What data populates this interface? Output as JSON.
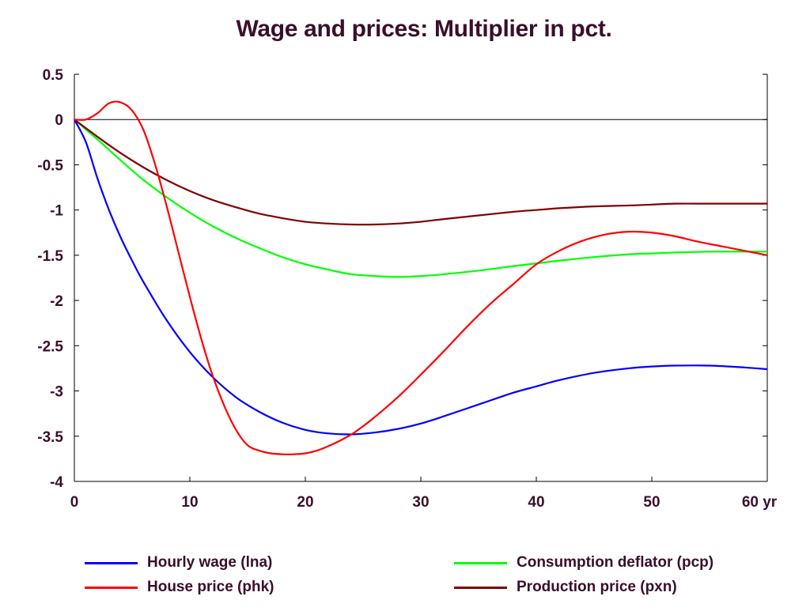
{
  "chart_data": {
    "type": "line",
    "title": "Wage and prices: Multiplier in pct.",
    "xlim": [
      0,
      60
    ],
    "ylim": [
      -4,
      0.5
    ],
    "x_ticks": [
      0,
      10,
      20,
      30,
      40,
      50,
      60
    ],
    "x_tick_labels": [
      "0",
      "10",
      "20",
      "30",
      "40",
      "50",
      "60 yr"
    ],
    "y_ticks": [
      0.5,
      0,
      -0.5,
      -1,
      -1.5,
      -2,
      -2.5,
      -3,
      -3.5,
      -4
    ],
    "y_tick_labels": [
      "0.5",
      "0",
      "-0.5",
      "-1",
      "-1.5",
      "-2",
      "-2.5",
      "-3",
      "-3.5",
      "-4"
    ],
    "zero_line": true,
    "grid": false,
    "legend_position": "bottom",
    "series": [
      {
        "name": "Hourly wage (lna)",
        "color": "#0000ff",
        "x": [
          0,
          1,
          2,
          3,
          4,
          5,
          6,
          8,
          10,
          12,
          14,
          16,
          18,
          20,
          22,
          24,
          26,
          28,
          30,
          32,
          35,
          38,
          40,
          42,
          45,
          48,
          50,
          52,
          55,
          58,
          60
        ],
        "y": [
          0,
          -0.25,
          -0.65,
          -1.0,
          -1.3,
          -1.56,
          -1.8,
          -2.22,
          -2.57,
          -2.85,
          -3.07,
          -3.23,
          -3.35,
          -3.43,
          -3.47,
          -3.48,
          -3.46,
          -3.42,
          -3.36,
          -3.28,
          -3.15,
          -3.02,
          -2.95,
          -2.88,
          -2.8,
          -2.75,
          -2.73,
          -2.72,
          -2.72,
          -2.74,
          -2.76
        ]
      },
      {
        "name": "Consumption deflator (pcp)",
        "color": "#00ff00",
        "x": [
          0,
          2,
          4,
          6,
          8,
          10,
          12,
          14,
          16,
          18,
          20,
          22,
          24,
          26,
          28,
          30,
          32,
          35,
          38,
          40,
          42,
          45,
          48,
          50,
          52,
          55,
          58,
          60
        ],
        "y": [
          0,
          -0.22,
          -0.45,
          -0.67,
          -0.86,
          -1.03,
          -1.18,
          -1.31,
          -1.42,
          -1.52,
          -1.6,
          -1.66,
          -1.71,
          -1.73,
          -1.74,
          -1.73,
          -1.71,
          -1.67,
          -1.62,
          -1.59,
          -1.56,
          -1.52,
          -1.49,
          -1.48,
          -1.47,
          -1.46,
          -1.46,
          -1.46
        ]
      },
      {
        "name": "House price (phk)",
        "color": "#ff0000",
        "x": [
          0,
          1,
          2,
          3,
          4,
          5,
          6,
          7,
          8,
          9,
          10,
          11,
          12,
          13,
          14,
          15,
          16,
          17,
          18,
          19,
          20,
          21,
          22,
          23,
          24,
          25,
          26,
          28,
          30,
          32,
          34,
          36,
          38,
          40,
          42,
          44,
          46,
          48,
          50,
          52,
          54,
          56,
          58,
          60
        ],
        "y": [
          0,
          0,
          0.07,
          0.18,
          0.19,
          0.1,
          -0.12,
          -0.5,
          -0.96,
          -1.46,
          -1.96,
          -2.43,
          -2.84,
          -3.17,
          -3.43,
          -3.6,
          -3.66,
          -3.69,
          -3.7,
          -3.7,
          -3.69,
          -3.66,
          -3.61,
          -3.55,
          -3.48,
          -3.39,
          -3.29,
          -3.07,
          -2.82,
          -2.56,
          -2.29,
          -2.04,
          -1.82,
          -1.6,
          -1.45,
          -1.34,
          -1.27,
          -1.24,
          -1.25,
          -1.29,
          -1.35,
          -1.4,
          -1.45,
          -1.5
        ]
      },
      {
        "name": "Production price (pxn)",
        "color": "#800000",
        "x": [
          0,
          2,
          4,
          6,
          8,
          10,
          12,
          14,
          16,
          18,
          20,
          22,
          24,
          26,
          28,
          30,
          32,
          35,
          38,
          40,
          42,
          45,
          48,
          50,
          52,
          55,
          58,
          60
        ],
        "y": [
          0,
          -0.19,
          -0.37,
          -0.53,
          -0.67,
          -0.79,
          -0.89,
          -0.97,
          -1.04,
          -1.09,
          -1.13,
          -1.15,
          -1.16,
          -1.16,
          -1.15,
          -1.13,
          -1.1,
          -1.06,
          -1.02,
          -1.0,
          -0.98,
          -0.96,
          -0.95,
          -0.94,
          -0.93,
          -0.93,
          -0.93,
          -0.93
        ]
      }
    ],
    "legend_order": [
      "Hourly wage (lna)",
      "Consumption deflator (pcp)",
      "House price (phk)",
      "Production price (pxn)"
    ]
  }
}
